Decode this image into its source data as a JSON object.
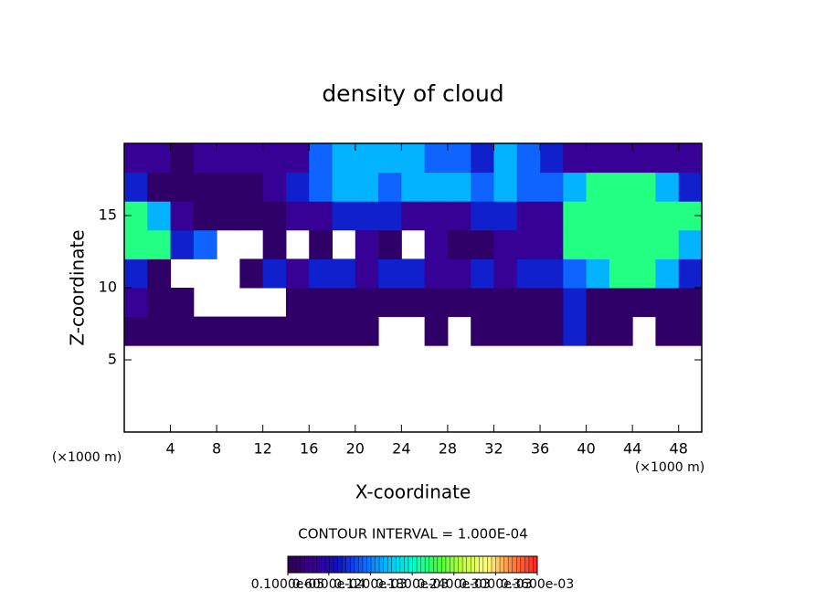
{
  "chart_data": {
    "type": "heatmap",
    "title": "density of cloud",
    "xlabel": "X-coordinate",
    "ylabel": "Z-coordinate",
    "xunit": "(×1000 m)",
    "yunit": "(×1000 m)",
    "annotation": "CONTOUR INTERVAL = 1.000E-04",
    "xlim": [
      0,
      50
    ],
    "ylim": [
      0,
      20
    ],
    "xticks": [
      4,
      8,
      12,
      16,
      20,
      24,
      28,
      32,
      36,
      40,
      44,
      48
    ],
    "yticks": [
      5,
      10,
      15
    ],
    "x": [
      1,
      3,
      5,
      7,
      9,
      11,
      13,
      15,
      17,
      19,
      21,
      23,
      25,
      27,
      29,
      31,
      33,
      35,
      37,
      39,
      41,
      43,
      45,
      47,
      49
    ],
    "y": [
      7,
      9,
      11,
      13,
      15,
      17,
      19
    ],
    "z": [
      [
        1.5e-05,
        1.5e-05,
        1.5e-05,
        1.5e-05,
        1.5e-05,
        1.5e-05,
        1.5e-05,
        1.5e-05,
        1.5e-05,
        1.5e-05,
        1.5e-05,
        null,
        null,
        1.5e-05,
        null,
        1.5e-05,
        1.5e-05,
        1.5e-05,
        1.5e-05,
        8e-05,
        1.5e-05,
        1.5e-05,
        null,
        1.5e-05,
        1.5e-05
      ],
      [
        4e-05,
        1.5e-05,
        1.5e-05,
        null,
        null,
        null,
        null,
        1.5e-05,
        1.5e-05,
        1.5e-05,
        1.5e-05,
        1.5e-05,
        1.5e-05,
        1.5e-05,
        1.5e-05,
        1.5e-05,
        1.5e-05,
        1.5e-05,
        1.5e-05,
        8e-05,
        1.5e-05,
        1.5e-05,
        1.5e-05,
        1.5e-05,
        1.5e-05
      ],
      [
        8e-05,
        1.5e-05,
        null,
        null,
        null,
        1.5e-05,
        8e-05,
        4e-05,
        8e-05,
        8e-05,
        4e-05,
        8e-05,
        8e-05,
        4e-05,
        4e-05,
        8e-05,
        4e-05,
        8e-05,
        8e-05,
        0.00011,
        0.00014,
        0.0002,
        0.0002,
        0.00014,
        8e-05
      ],
      [
        0.0002,
        0.0002,
        8e-05,
        0.00011,
        null,
        null,
        1.5e-05,
        null,
        1.5e-05,
        null,
        4e-05,
        1.5e-05,
        null,
        4e-05,
        1.5e-05,
        1.5e-05,
        4e-05,
        4e-05,
        4e-05,
        0.0002,
        0.0002,
        0.0002,
        0.0002,
        0.0002,
        0.00014
      ],
      [
        0.0002,
        0.00014,
        4e-05,
        1.5e-05,
        1.5e-05,
        1.5e-05,
        1.5e-05,
        4e-05,
        4e-05,
        8e-05,
        8e-05,
        8e-05,
        4e-05,
        4e-05,
        4e-05,
        8e-05,
        8e-05,
        4e-05,
        4e-05,
        0.0002,
        0.0002,
        0.0002,
        0.0002,
        0.0002,
        0.0002
      ],
      [
        8e-05,
        1.5e-05,
        1.5e-05,
        1.5e-05,
        1.5e-05,
        1.5e-05,
        4e-05,
        8e-05,
        0.00011,
        0.00014,
        0.00014,
        0.00011,
        0.00014,
        0.00014,
        0.00014,
        0.00011,
        0.00014,
        0.00011,
        0.00011,
        0.00014,
        0.0002,
        0.0002,
        0.0002,
        0.00014,
        8e-05
      ],
      [
        4e-05,
        4e-05,
        1.5e-05,
        4e-05,
        4e-05,
        4e-05,
        4e-05,
        4e-05,
        0.00011,
        0.00014,
        0.00014,
        0.00014,
        0.00014,
        0.00011,
        0.00011,
        8e-05,
        0.00014,
        0.00011,
        8e-05,
        4e-05,
        4e-05,
        4e-05,
        4e-05,
        4e-05,
        4e-05
      ]
    ],
    "colormap": [
      "#2a0050",
      "#3a0090",
      "#1010c0",
      "#1060ff",
      "#00c0ff",
      "#00ffd0",
      "#40ff40",
      "#c0ff40",
      "#ffff80",
      "#ff8040",
      "#ff2020"
    ],
    "clim": [
      1e-06,
      0.00036
    ],
    "cticks": [
      {
        "value": 1e-06,
        "label": "0.1000e-05"
      },
      {
        "value": 6e-05,
        "label": "0.6000e-04"
      },
      {
        "value": 0.00012,
        "label": "0.1200e-03"
      },
      {
        "value": 0.00018,
        "label": "0.1800e-03"
      },
      {
        "value": 0.00024,
        "label": "0.2400e-03"
      },
      {
        "value": 0.0003,
        "label": "0.3000e-03"
      },
      {
        "value": 0.00036,
        "label": "0.3600e-03"
      }
    ]
  }
}
